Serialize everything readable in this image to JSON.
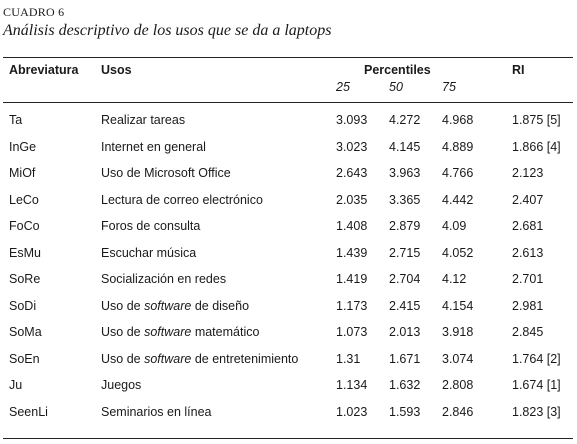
{
  "label": "CUADRO 6",
  "title": "Análisis descriptivo de los usos que se da a laptops",
  "headers": {
    "abreviatura": "Abreviatura",
    "usos": "Usos",
    "percentiles": "Percentiles",
    "p25": "25",
    "p50": "50",
    "p75": "75",
    "ri": "RI"
  },
  "rows": [
    {
      "abbr": "Ta",
      "uso_pre": "Realizar tareas",
      "uso_sw": "",
      "uso_post": "",
      "p25": "3.093",
      "p50": "4.272",
      "p75": "4.968",
      "ri": "1.875 [5]"
    },
    {
      "abbr": "InGe",
      "uso_pre": "Internet en general",
      "uso_sw": "",
      "uso_post": "",
      "p25": "3.023",
      "p50": "4.145",
      "p75": "4.889",
      "ri": "1.866 [4]"
    },
    {
      "abbr": "MiOf",
      "uso_pre": "Uso de Microsoft Office",
      "uso_sw": "",
      "uso_post": "",
      "p25": "2.643",
      "p50": "3.963",
      "p75": "4.766",
      "ri": "2.123"
    },
    {
      "abbr": "LeCo",
      "uso_pre": "Lectura de correo electrónico",
      "uso_sw": "",
      "uso_post": "",
      "p25": "2.035",
      "p50": "3.365",
      "p75": "4.442",
      "ri": "2.407"
    },
    {
      "abbr": "FoCo",
      "uso_pre": "Foros de consulta",
      "uso_sw": "",
      "uso_post": "",
      "p25": "1.408",
      "p50": "2.879",
      "p75": "4.09",
      "ri": "2.681"
    },
    {
      "abbr": "EsMu",
      "uso_pre": "Escuchar música",
      "uso_sw": "",
      "uso_post": "",
      "p25": "1.439",
      "p50": "2.715",
      "p75": "4.052",
      "ri": "2.613"
    },
    {
      "abbr": "SoRe",
      "uso_pre": "Socialización en redes",
      "uso_sw": "",
      "uso_post": "",
      "p25": "1.419",
      "p50": "2.704",
      "p75": "4.12",
      "ri": "2.701"
    },
    {
      "abbr": "SoDi",
      "uso_pre": "Uso de ",
      "uso_sw": "software",
      "uso_post": " de diseño",
      "p25": "1.173",
      "p50": "2.415",
      "p75": "4.154",
      "ri": "2.981"
    },
    {
      "abbr": "SoMa",
      "uso_pre": "Uso de ",
      "uso_sw": "software",
      "uso_post": " matemático",
      "p25": "1.073",
      "p50": "2.013",
      "p75": "3.918",
      "ri": "2.845"
    },
    {
      "abbr": "SoEn",
      "uso_pre": "Uso de ",
      "uso_sw": "software",
      "uso_post": " de entretenimiento",
      "p25": "1.31",
      "p50": "1.671",
      "p75": "3.074",
      "ri": "1.764 [2]"
    },
    {
      "abbr": "Ju",
      "uso_pre": "Juegos",
      "uso_sw": "",
      "uso_post": "",
      "p25": "1.134",
      "p50": "1.632",
      "p75": "2.808",
      "ri": "1.674 [1]"
    },
    {
      "abbr": "SeenLi",
      "uso_pre": "Seminarios en línea",
      "uso_sw": "",
      "uso_post": "",
      "p25": "1.023",
      "p50": "1.593",
      "p75": "2.846",
      "ri": "1.823 [3]"
    }
  ]
}
